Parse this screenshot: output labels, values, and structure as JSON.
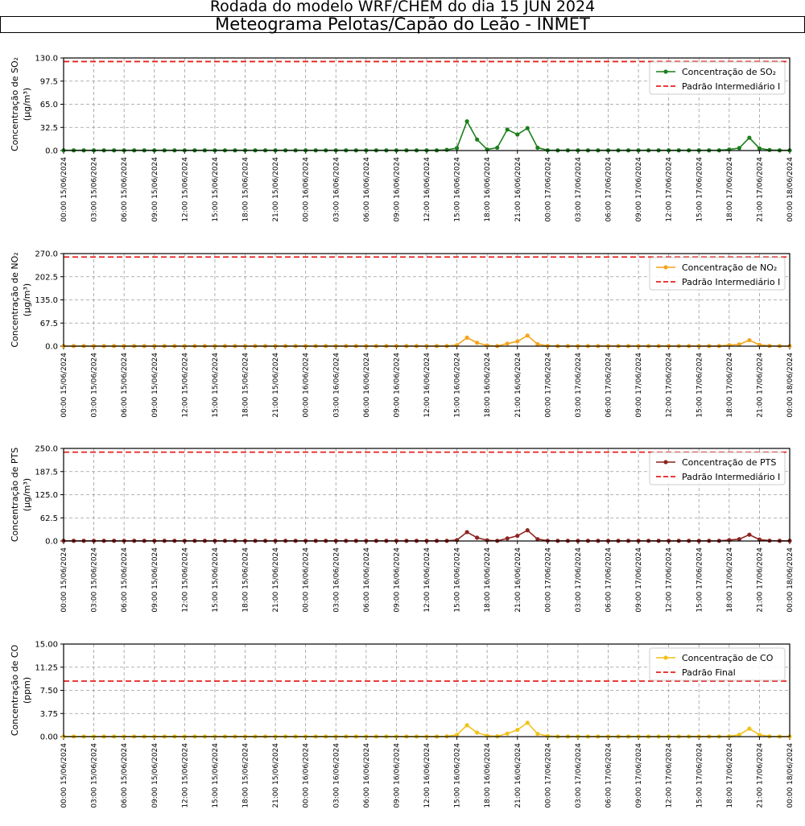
{
  "header": {
    "run_title": "Rodada do modelo WRF/CHEM do dia 15 JUN 2024",
    "station_title": "Meteograma Pelotas/Capão do Leão - INMET"
  },
  "chart_data": [
    {
      "type": "line",
      "ylabel": "Concentração de SO₂",
      "yunit": "(μg/m³)",
      "ylim": [
        0,
        130
      ],
      "yticks": [
        "0.0",
        "32.5",
        "65.0",
        "97.5",
        "130.0"
      ],
      "grid": true,
      "legend_position": "upper right",
      "series": [
        {
          "name": "Concentração de SO₂",
          "color": "#1a7f1a",
          "values": [
            0.3,
            0.3,
            0.3,
            0.3,
            0.3,
            0.3,
            0.3,
            0.3,
            0.3,
            0.3,
            0.3,
            0.3,
            0.3,
            0.3,
            0.3,
            0.3,
            0.3,
            0.3,
            0.3,
            0.3,
            0.3,
            0.3,
            0.3,
            0.3,
            0.3,
            0.3,
            0.3,
            0.3,
            0.3,
            0.3,
            0.3,
            0.3,
            0.3,
            0.3,
            0.3,
            0.3,
            0.3,
            0.3,
            1.0,
            3.5,
            41.0,
            15.5,
            1.5,
            4.0,
            29.5,
            22.5,
            31.5,
            4.0,
            0.5,
            0.3,
            0.3,
            0.3,
            0.3,
            0.3,
            0.3,
            0.3,
            0.3,
            0.3,
            0.3,
            0.3,
            0.3,
            0.3,
            0.3,
            0.3,
            0.3,
            0.3,
            1.5,
            3.5,
            18.0,
            3.0,
            0.8,
            0.3,
            0.3
          ]
        },
        {
          "name": "Padrão Intermediário I",
          "color": "#e8201e",
          "constant": 125
        }
      ]
    },
    {
      "type": "line",
      "ylabel": "Concentração de NO₂",
      "yunit": "(μg/m³)",
      "ylim": [
        0,
        270
      ],
      "yticks": [
        "0.0",
        "67.5",
        "135.0",
        "202.5",
        "270.0"
      ],
      "grid": true,
      "legend_position": "upper right",
      "series": [
        {
          "name": "Concentração de NO₂",
          "color": "#f5a41e",
          "values": [
            0.5,
            0.5,
            0.5,
            0.5,
            0.5,
            0.5,
            0.5,
            0.5,
            0.5,
            0.5,
            0.5,
            0.5,
            0.5,
            0.5,
            0.5,
            0.5,
            0.5,
            0.5,
            0.5,
            0.5,
            0.5,
            0.5,
            0.5,
            0.5,
            0.5,
            0.5,
            0.5,
            0.5,
            0.5,
            0.5,
            0.5,
            0.5,
            0.5,
            0.5,
            0.5,
            0.5,
            0.5,
            0.5,
            0.5,
            3.0,
            25.0,
            10.0,
            2.0,
            0.5,
            7.5,
            14.0,
            31.0,
            6.0,
            1.0,
            0.5,
            0.5,
            0.5,
            0.5,
            0.5,
            0.5,
            0.5,
            0.5,
            0.5,
            0.5,
            0.5,
            0.5,
            0.5,
            0.5,
            0.5,
            0.5,
            0.5,
            3.0,
            5.0,
            17.5,
            4.0,
            1.0,
            0.5,
            0.5
          ]
        },
        {
          "name": "Padrão Intermediário I",
          "color": "#e8201e",
          "constant": 260
        }
      ]
    },
    {
      "type": "line",
      "ylabel": "Concentração de PTS",
      "yunit": "(μg/m³)",
      "ylim": [
        0,
        250
      ],
      "yticks": [
        "0.0",
        "62.5",
        "125.0",
        "187.5",
        "250.0"
      ],
      "grid": true,
      "legend_position": "upper right",
      "series": [
        {
          "name": "Concentração de PTS",
          "color": "#8e2420",
          "values": [
            0.5,
            0.5,
            0.5,
            0.5,
            0.5,
            0.5,
            0.5,
            0.5,
            0.5,
            0.5,
            0.5,
            0.5,
            0.5,
            0.5,
            0.5,
            0.5,
            0.5,
            0.5,
            0.5,
            0.5,
            0.5,
            0.5,
            0.5,
            0.5,
            0.5,
            0.5,
            0.5,
            0.5,
            0.5,
            0.5,
            0.5,
            0.5,
            0.5,
            0.5,
            0.5,
            0.5,
            0.5,
            0.5,
            0.5,
            2.5,
            24.0,
            9.0,
            2.0,
            0.5,
            7.0,
            14.0,
            29.0,
            5.0,
            1.0,
            0.5,
            0.5,
            0.5,
            0.5,
            0.5,
            0.5,
            0.5,
            0.5,
            0.5,
            0.5,
            0.5,
            0.5,
            0.5,
            0.5,
            0.5,
            0.5,
            0.5,
            2.5,
            5.0,
            17.0,
            4.0,
            1.0,
            0.5,
            0.5
          ]
        },
        {
          "name": "Padrão Intermediário I",
          "color": "#e8201e",
          "constant": 240
        }
      ]
    },
    {
      "type": "line",
      "ylabel": "Concentração de CO",
      "yunit": "(ppm)",
      "ylim": [
        0,
        15
      ],
      "yticks": [
        "0.00",
        "3.75",
        "7.50",
        "11.25",
        "15.00"
      ],
      "grid": true,
      "legend_position": "upper right",
      "series": [
        {
          "name": "Concentração de CO",
          "color": "#f2c21b",
          "values": [
            0.02,
            0.02,
            0.02,
            0.02,
            0.02,
            0.02,
            0.02,
            0.02,
            0.02,
            0.02,
            0.02,
            0.02,
            0.02,
            0.02,
            0.02,
            0.02,
            0.02,
            0.02,
            0.02,
            0.02,
            0.02,
            0.02,
            0.02,
            0.02,
            0.02,
            0.02,
            0.02,
            0.02,
            0.02,
            0.02,
            0.02,
            0.02,
            0.02,
            0.02,
            0.02,
            0.02,
            0.02,
            0.02,
            0.05,
            0.3,
            1.85,
            0.65,
            0.15,
            0.05,
            0.5,
            1.1,
            2.25,
            0.45,
            0.1,
            0.02,
            0.02,
            0.02,
            0.02,
            0.02,
            0.02,
            0.02,
            0.02,
            0.02,
            0.02,
            0.02,
            0.02,
            0.02,
            0.02,
            0.02,
            0.02,
            0.02,
            0.05,
            0.3,
            1.3,
            0.3,
            0.05,
            0.02,
            0.02
          ]
        },
        {
          "name": "Padrão Final",
          "color": "#e8201e",
          "constant": 9
        }
      ]
    }
  ],
  "x_tick_labels": [
    "00:00 15/06/2024",
    "03:00 15/06/2024",
    "06:00 15/06/2024",
    "09:00 15/06/2024",
    "12:00 15/06/2024",
    "15:00 15/06/2024",
    "18:00 15/06/2024",
    "21:00 15/06/2024",
    "00:00 16/06/2024",
    "03:00 16/06/2024",
    "06:00 16/06/2024",
    "09:00 16/06/2024",
    "12:00 16/06/2024",
    "15:00 16/06/2024",
    "18:00 16/06/2024",
    "21:00 16/06/2024",
    "00:00 17/06/2024",
    "03:00 17/06/2024",
    "06:00 17/06/2024",
    "09:00 17/06/2024",
    "12:00 17/06/2024",
    "15:00 17/06/2024",
    "18:00 17/06/2024",
    "21:00 17/06/2024",
    "00:00 18/06/2024"
  ]
}
